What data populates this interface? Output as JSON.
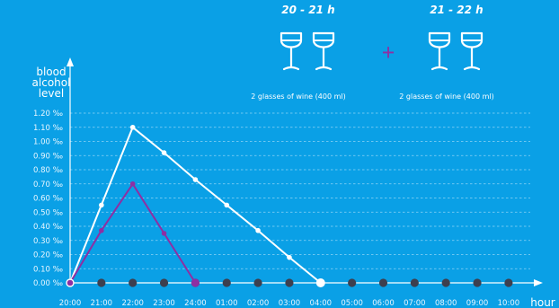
{
  "chart_data": {
    "type": "line",
    "ylabel_lines": [
      "blood",
      "alcohol",
      "level"
    ],
    "xlabel": "hour",
    "categories": [
      "20:00",
      "21:00",
      "22:00",
      "23:00",
      "24:00",
      "01:00",
      "02:00",
      "03:00",
      "04:00",
      "05:00",
      "06:00",
      "07:00",
      "08:00",
      "09:00",
      "10:00"
    ],
    "y_ticks": [
      "0.00 ‰",
      "0.10 ‰",
      "0.20 ‰",
      "0.30 ‰",
      "0.40 ‰",
      "0.50 ‰",
      "0.60 ‰",
      "0.70 ‰",
      "0.80 ‰",
      "0.90 ‰",
      "1.00 ‰",
      "1.10 ‰",
      "1.20 ‰"
    ],
    "ylim": [
      0,
      1.2
    ],
    "grid": true,
    "series": [
      {
        "color": "#ffffff",
        "x": [
          0,
          1,
          2,
          3,
          4,
          5,
          6,
          7,
          8
        ],
        "values": [
          0.0,
          0.55,
          1.1,
          0.92,
          0.73,
          0.55,
          0.37,
          0.18,
          0.0
        ]
      },
      {
        "color": "#8e2fa3",
        "x": [
          0,
          1,
          2,
          3,
          4
        ],
        "values": [
          0.0,
          0.37,
          0.7,
          0.35,
          0.0
        ]
      }
    ],
    "annotations": [
      {
        "period": "20 - 21 h",
        "caption": "2 glasses of wine (400 ml)",
        "icon": "wine-glass-icon",
        "count": 2
      },
      {
        "period": "21 - 22 h",
        "caption": "2 glasses of wine (400 ml)",
        "icon": "wine-glass-icon",
        "count": 2
      }
    ],
    "baseline_dot_color": "#3d3f4f"
  }
}
